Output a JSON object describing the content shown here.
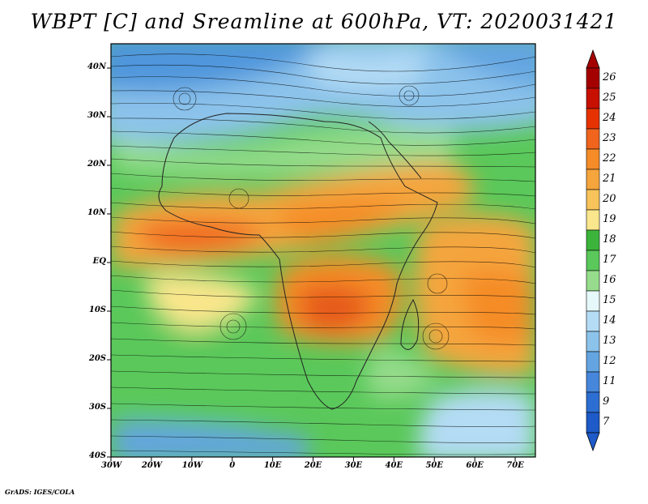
{
  "title": "WBPT [C] and Sreamline at 600hPa, VT: 2020031421",
  "credit": "GrADS: IGES/COLA",
  "map": {
    "lon_range": [
      -30,
      75
    ],
    "lat_range": [
      -40,
      45
    ],
    "lat_ticks": [
      "40N",
      "30N",
      "20N",
      "10N",
      "EQ",
      "10S",
      "20S",
      "30S",
      "40S"
    ],
    "lon_ticks": [
      "30W",
      "20W",
      "10W",
      "0",
      "10E",
      "20E",
      "30E",
      "40E",
      "50E",
      "60E",
      "70E"
    ]
  },
  "colorbar": {
    "labels": [
      "26",
      "25",
      "24",
      "23",
      "22",
      "21",
      "20",
      "19",
      "18",
      "17",
      "16",
      "15",
      "14",
      "13",
      "12",
      "11",
      "9",
      "7"
    ],
    "colors": [
      "#a50000",
      "#c81000",
      "#e63200",
      "#f0641e",
      "#f58c28",
      "#f5a53c",
      "#f7c35a",
      "#fae68c",
      "#3cb43c",
      "#5ac85a",
      "#96dc8c",
      "#e6f8fa",
      "#b4dcf5",
      "#8cc3eb",
      "#64a5e1",
      "#4687dc",
      "#2d6ed2",
      "#1e5ac8"
    ]
  }
}
